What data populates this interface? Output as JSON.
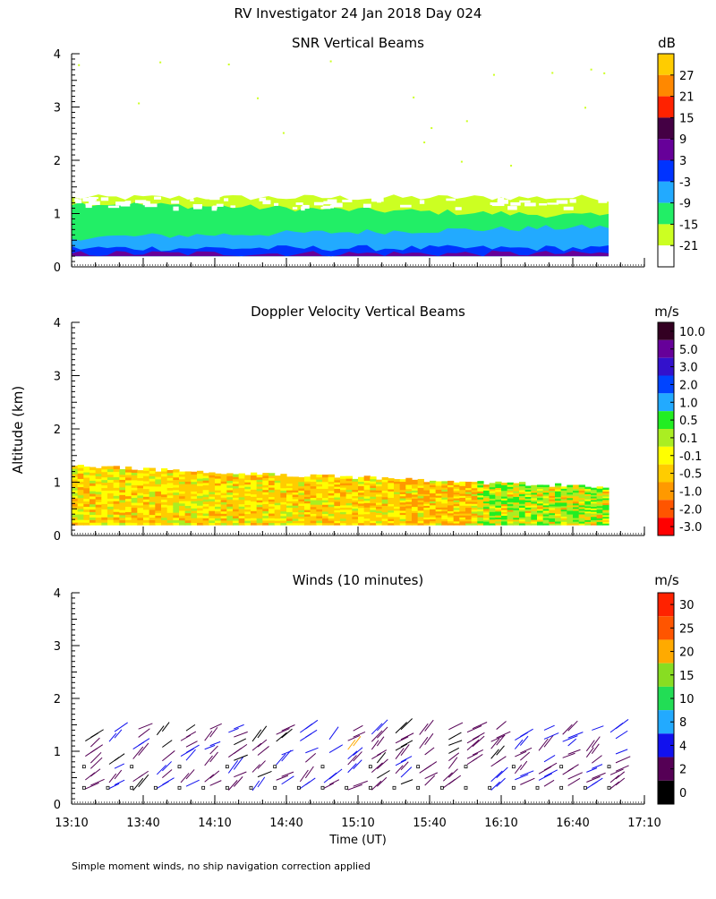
{
  "title": "RV Investigator  24 Jan 2018 Day 024",
  "footnote": "Simple moment winds, no ship navigation correction applied",
  "ylabel": "Altitude (km)",
  "xlabel": "Time (UT)",
  "x_ticks": [
    "13:10",
    "13:40",
    "14:10",
    "14:40",
    "15:10",
    "15:40",
    "16:10",
    "16:40",
    "17:10"
  ],
  "chart_data": [
    {
      "type": "heatmap",
      "title": "SNR Vertical Beams",
      "units": "dB",
      "x_range_min": [
        0,
        240
      ],
      "ylim": [
        0,
        4
      ],
      "y_ticks": [
        "0",
        "1",
        "2",
        "3",
        "4"
      ],
      "colorbar": {
        "labels": [
          "27",
          "21",
          "15",
          "9",
          "3",
          "-3",
          "-9",
          "-15",
          "-21"
        ],
        "colors": [
          "#ffcc00",
          "#ff8800",
          "#ff2200",
          "#440044",
          "#660099",
          "#0033ff",
          "#22aaff",
          "#22ee66",
          "#ccff22",
          "#ffffff"
        ]
      },
      "layers": [
        {
          "name": "top -21 dB band",
          "height_km": [
            1.3,
            1.3
          ],
          "color": "#ccff22"
        },
        {
          "name": "-15 dB",
          "height_km": [
            1.2,
            0.95
          ],
          "color": "#22ee66"
        },
        {
          "name": "-9 dB",
          "height_km": [
            0.55,
            0.75
          ],
          "color": "#22aaff"
        },
        {
          "name": "-3 dB",
          "height_km": [
            0.35,
            0.35
          ],
          "color": "#0033ff"
        },
        {
          "name": "3 dB",
          "height_km": [
            0.25,
            0.25
          ],
          "color": "#660099"
        }
      ],
      "data_extent_min": [
        0,
        225
      ]
    },
    {
      "type": "heatmap",
      "title": "Doppler Velocity Vertical Beams",
      "units": "m/s",
      "x_range_min": [
        0,
        240
      ],
      "ylim": [
        0,
        4
      ],
      "y_ticks": [
        "0",
        "1",
        "2",
        "3",
        "4"
      ],
      "colorbar": {
        "labels": [
          "10.0",
          "5.0",
          "3.0",
          "2.0",
          "1.0",
          "0.5",
          "0.1",
          "-0.1",
          "-0.5",
          "-1.0",
          "-2.0",
          "-3.0"
        ],
        "colors": [
          "#330022",
          "#660099",
          "#3311cc",
          "#0044ff",
          "#22aaff",
          "#22ee22",
          "#aaee22",
          "#ffff00",
          "#ffcc00",
          "#ff9900",
          "#ff5500",
          "#ff0000"
        ]
      },
      "top_km": [
        1.3,
        0.9
      ],
      "bottom_km": 0.2,
      "data_extent_min": [
        0,
        225
      ],
      "dominant": "-0.1 to -1.0 m/s (yellow to orange), green (0.1) late"
    },
    {
      "type": "scatter",
      "title": "Winds (10 minutes)",
      "units": "m/s",
      "x_range_min": [
        0,
        240
      ],
      "ylim": [
        0,
        4
      ],
      "y_ticks": [
        "0",
        "1",
        "2",
        "3",
        "4"
      ],
      "colorbar": {
        "labels": [
          "30",
          "25",
          "20",
          "15",
          "10",
          "8",
          "4",
          "2",
          "0"
        ],
        "colors": [
          "#ff2200",
          "#ff5500",
          "#ffaa00",
          "#88dd22",
          "#22dd55",
          "#22aaff",
          "#1111ee",
          "#550055",
          "#000000"
        ]
      },
      "profile_times_min": [
        8,
        18,
        28,
        38,
        48,
        58,
        68,
        78,
        88,
        98,
        108,
        118,
        128,
        138,
        148,
        158,
        168,
        178,
        188,
        198,
        208,
        218,
        228
      ],
      "barb_heights_km": [
        0.35,
        0.5,
        0.65,
        0.8,
        0.95,
        1.1,
        1.25,
        1.4
      ],
      "barb_direction": "pointing up-right (westerly / south-westerly)",
      "typical_speed_ms": "2-8"
    }
  ]
}
